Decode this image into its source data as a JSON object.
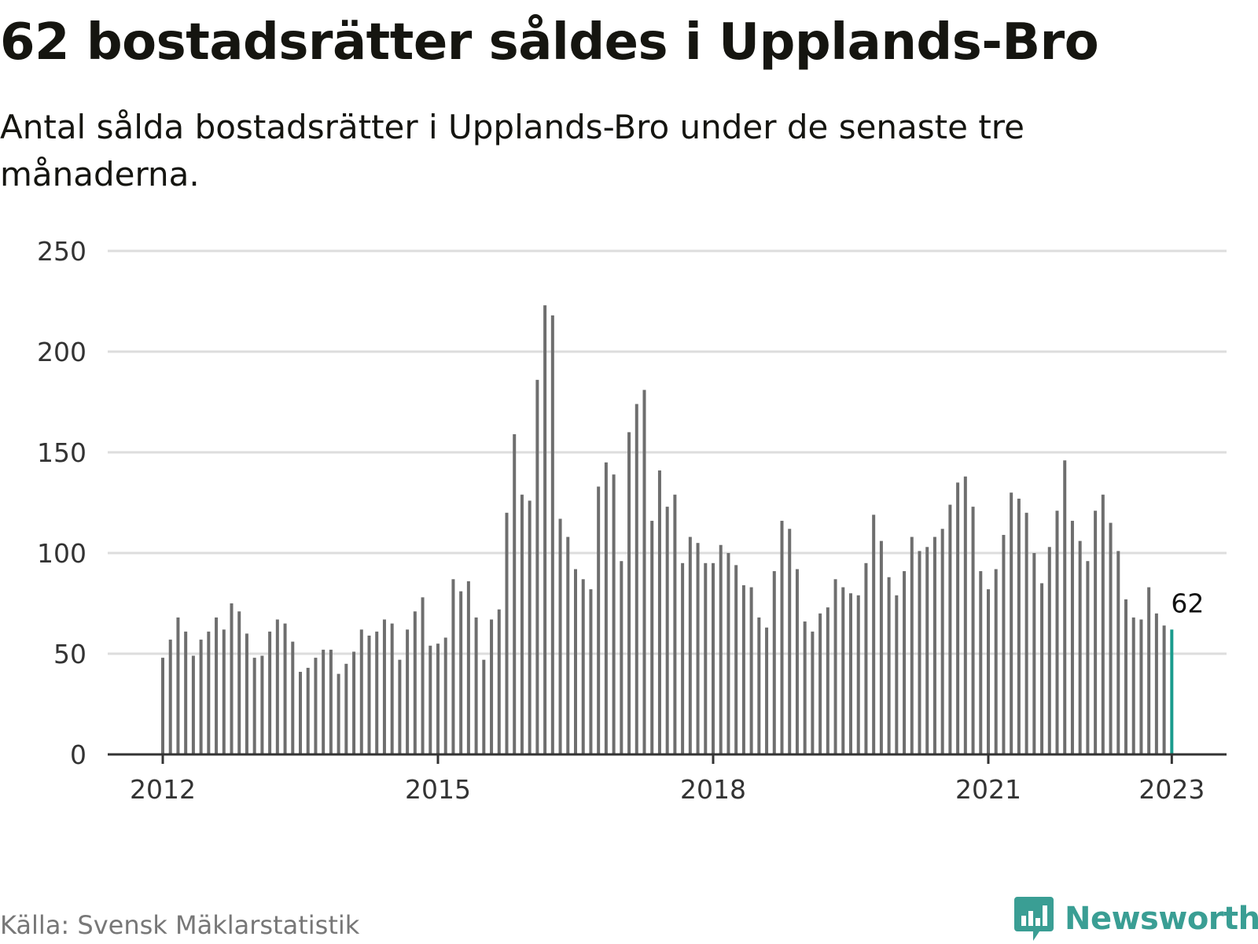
{
  "title": "62 bostadsrätter såldes i Upplands-Bro",
  "subtitle": "Antal sålda bostadsrätter i Upplands-Bro under de senaste tre månaderna.",
  "source": "Källa: Svensk Mäklarstatistik",
  "brand": {
    "name": "Newsworthy",
    "icon": "bar-chart-speech-bubble-icon",
    "color": "#3a9e94"
  },
  "colors": {
    "bar": "#6e6e6e",
    "highlight": "#1a9c8d",
    "grid": "#dddddd",
    "axis": "#333333"
  },
  "chart_data": {
    "type": "bar",
    "title": "",
    "xlabel": "",
    "ylabel": "",
    "ylim": [
      0,
      250
    ],
    "yticks": [
      "0",
      "50",
      "100",
      "150",
      "200",
      "250"
    ],
    "xticks": [
      "2012",
      "2015",
      "2018",
      "2021",
      "2023"
    ],
    "grid": true,
    "start_month": "2012-01",
    "end_month": "2023-01",
    "values": [
      48,
      57,
      68,
      61,
      49,
      57,
      61,
      68,
      62,
      75,
      71,
      60,
      48,
      49,
      61,
      67,
      65,
      56,
      41,
      43,
      48,
      52,
      52,
      40,
      45,
      51,
      62,
      59,
      61,
      67,
      65,
      47,
      62,
      71,
      78,
      54,
      55,
      58,
      87,
      81,
      86,
      68,
      47,
      67,
      72,
      120,
      159,
      129,
      126,
      186,
      223,
      218,
      117,
      108,
      92,
      87,
      82,
      133,
      145,
      139,
      96,
      160,
      174,
      181,
      116,
      141,
      123,
      129,
      95,
      108,
      105,
      95,
      95,
      104,
      100,
      94,
      84,
      83,
      68,
      63,
      91,
      116,
      112,
      92,
      66,
      61,
      70,
      73,
      87,
      83,
      80,
      79,
      95,
      119,
      106,
      88,
      79,
      91,
      108,
      101,
      103,
      108,
      112,
      124,
      135,
      138,
      123,
      91,
      82,
      92,
      109,
      130,
      127,
      120,
      100,
      85,
      103,
      121,
      146,
      116,
      106,
      96,
      121,
      129,
      115,
      101,
      77,
      68,
      67,
      83,
      70,
      64,
      62
    ],
    "highlight_label": "62"
  }
}
